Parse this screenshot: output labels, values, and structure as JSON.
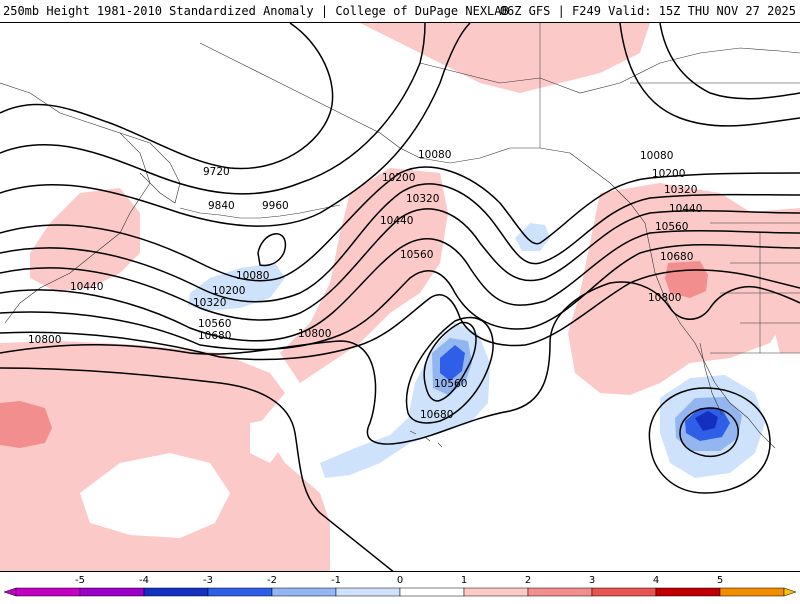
{
  "header": {
    "left": "250mb Height 1981-2010 Standardized Anomaly | College of DuPage NEXLAB",
    "right": "06Z GFS | F249 Valid: 15Z THU NOV 27 2025"
  },
  "contour_labels": [
    "9720",
    "9840",
    "9960",
    "10080",
    "10200",
    "10320",
    "10440",
    "10560",
    "10680",
    "10800",
    "10080",
    "10200",
    "10320",
    "10440",
    "10560",
    "10560",
    "10680",
    "10800",
    "10080",
    "10200",
    "10320",
    "10440",
    "10560",
    "10680",
    "10800"
  ],
  "colorbar": {
    "ticks": [
      "-5",
      "-4",
      "-3",
      "-2",
      "-1",
      "0",
      "1",
      "2",
      "3",
      "4",
      "5"
    ],
    "colors": [
      "#c500c5",
      "#9a00c7",
      "#1530c0",
      "#2e5fe6",
      "#94b6f0",
      "#cfe2fb",
      "#ffffff",
      "#fcc9c9",
      "#f38e8e",
      "#e85454",
      "#c00000",
      "#f08e00",
      "#f7c000"
    ]
  }
}
